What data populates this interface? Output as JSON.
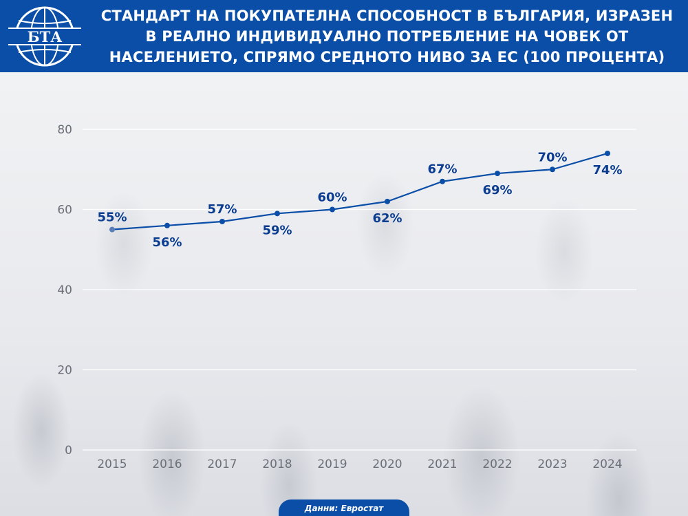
{
  "header": {
    "title_lines": [
      "СТАНДАРТ НА ПОКУПАТЕЛНА СПОСОБНОСТ В БЪЛГАРИЯ, ИЗРАЗЕН",
      "В РЕАЛНО ИНДИВИДУАЛНО ПОТРЕБЛЕНИЕ НА ЧОВЕК ОТ",
      "НАСЕЛЕНИЕТО, СПРЯМО СРЕДНОТО НИВО ЗА ЕС (100 ПРОЦЕНТА)"
    ],
    "logo_text": "БТА"
  },
  "source": "Данни: Евростат",
  "colors": {
    "brand": "#0a4ea8",
    "line": "#0a4ea8",
    "first_point": "#5a7fb8",
    "label": "#0a3d8f",
    "axis_text": "#6b6f78",
    "grid": "#ffffff"
  },
  "chart_data": {
    "type": "line",
    "title": "СТАНДАРТ НА ПОКУПАТЕЛНА СПОСОБНОСТ В БЪЛГАРИЯ, ИЗРАЗЕН В РЕАЛНО ИНДИВИДУАЛНО ПОТРЕБЛЕНИЕ НА ЧОВЕК ОТ НАСЕЛЕНИЕТО, СПРЯМО СРЕДНОТО НИВО ЗА ЕС (100 ПРОЦЕНТА)",
    "categories": [
      "2015",
      "2016",
      "2017",
      "2018",
      "2019",
      "2020",
      "2021",
      "2022",
      "2023",
      "2024"
    ],
    "values": [
      55,
      56,
      57,
      59,
      60,
      62,
      67,
      69,
      70,
      74
    ],
    "data_labels": [
      "55%",
      "56%",
      "57%",
      "59%",
      "60%",
      "62%",
      "67%",
      "69%",
      "70%",
      "74%"
    ],
    "label_position": [
      "above",
      "below",
      "above",
      "below",
      "above",
      "below",
      "above",
      "below",
      "above",
      "below"
    ],
    "y_ticks": [
      "0",
      "20",
      "40",
      "60",
      "80"
    ],
    "ylim": [
      0,
      80
    ],
    "xlabel": "",
    "ylabel": "",
    "grid": true,
    "legend": "none"
  }
}
